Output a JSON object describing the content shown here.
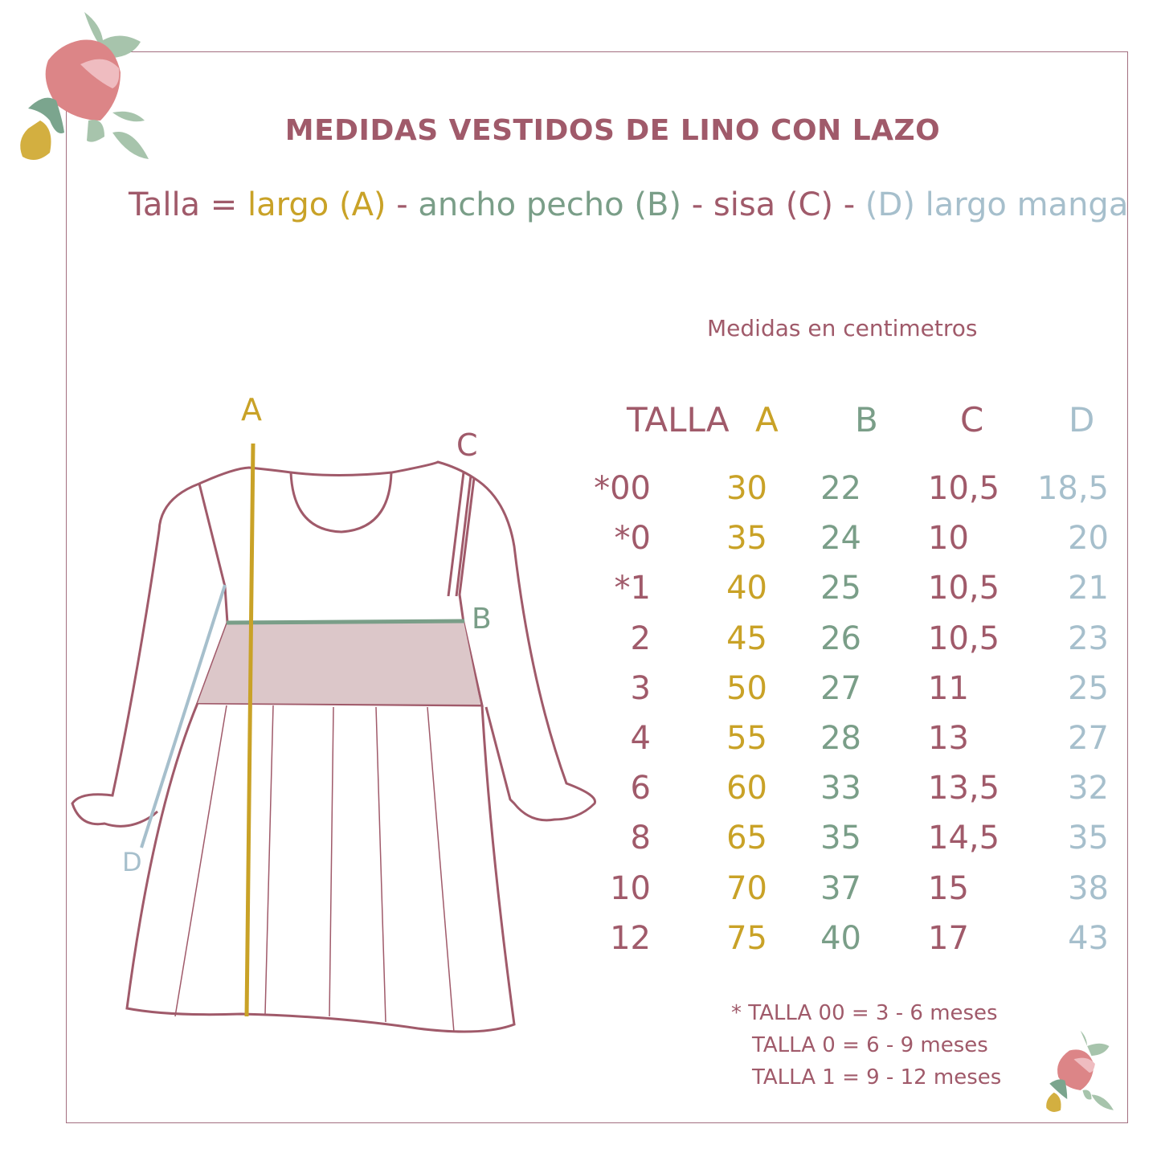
{
  "title": "MEDIDAS VESTIDOS DE LINO CON LAZO",
  "formula": {
    "prefix": "Talla = ",
    "a": "largo (A)",
    "sep1": " - ",
    "b": "ancho pecho (B)",
    "sep2": " - ",
    "c": "sisa (C)",
    "sep3": " - ",
    "d": "(D) largo manga"
  },
  "units_note": "Medidas en centimetros",
  "diagram_labels": {
    "a": "A",
    "b": "B",
    "c": "C",
    "d": "D"
  },
  "table": {
    "headers": [
      "TALLA",
      "A",
      "B",
      "C",
      "D"
    ],
    "rows": [
      [
        "*00",
        "30",
        "22",
        "10,5",
        "18,5"
      ],
      [
        "*0",
        "35",
        "24",
        "10",
        "20"
      ],
      [
        "*1",
        "40",
        "25",
        "10,5",
        "21"
      ],
      [
        "2",
        "45",
        "26",
        "10,5",
        "23"
      ],
      [
        "3",
        "50",
        "27",
        "11",
        "25"
      ],
      [
        "4",
        "55",
        "28",
        "13",
        "27"
      ],
      [
        "6",
        "60",
        "33",
        "13,5",
        "32"
      ],
      [
        "8",
        "65",
        "35",
        "14,5",
        "35"
      ],
      [
        "10",
        "70",
        "37",
        "15",
        "38"
      ],
      [
        "12",
        "75",
        "40",
        "17",
        "43"
      ]
    ]
  },
  "footnotes": [
    "* TALLA 00 = 3 - 6 meses",
    "TALLA 0   = 6 - 9 meses",
    "TALLA 1   = 9 - 12 meses"
  ],
  "colors": {
    "maroon": "#a05a6a",
    "yellow": "#c9a227",
    "green": "#7a9e88",
    "blue": "#a6bfcc",
    "band": "#dcc7c9"
  }
}
